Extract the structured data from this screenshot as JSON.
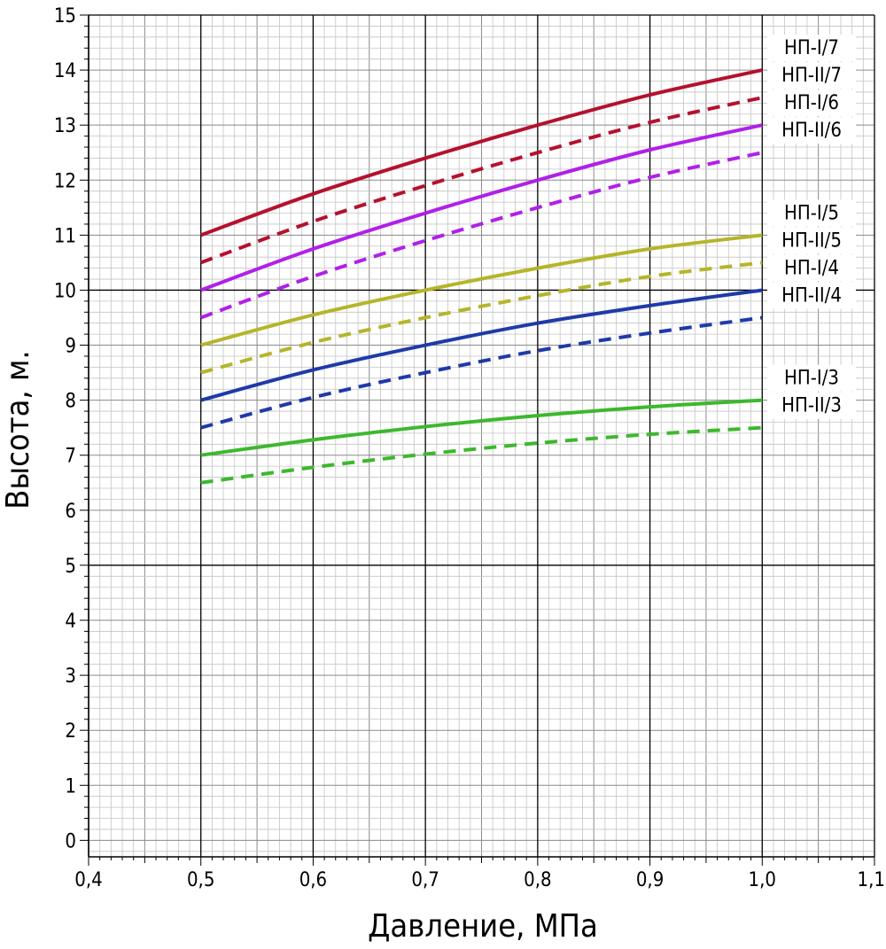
{
  "chart_data": {
    "type": "line",
    "xlabel": "Давление, МПа",
    "ylabel": "Высота, м.",
    "xlim": [
      0.4,
      1.1
    ],
    "ylim": [
      -0.3,
      15
    ],
    "x_ticks": [
      "0,4",
      "0,5",
      "0,6",
      "0,7",
      "0,8",
      "0,9",
      "1,0",
      "1,1"
    ],
    "y_ticks": [
      "0",
      "1",
      "2",
      "3",
      "4",
      "5",
      "6",
      "7",
      "8",
      "9",
      "10",
      "11",
      "12",
      "13",
      "14",
      "15"
    ],
    "grid": true,
    "legend": "right (labels at line ends)",
    "series": [
      {
        "name": "НП-I/7",
        "style": "solid",
        "color": "#b5112e",
        "x": [
          0.5,
          0.6,
          0.7,
          0.8,
          0.9,
          1.0
        ],
        "y": [
          11.0,
          11.75,
          12.4,
          13.0,
          13.55,
          14.0
        ]
      },
      {
        "name": "НП-II/7",
        "style": "dashed",
        "color": "#b5112e",
        "x": [
          0.5,
          0.6,
          0.7,
          0.8,
          0.9,
          1.0
        ],
        "y": [
          10.5,
          11.25,
          11.9,
          12.5,
          13.05,
          13.5
        ]
      },
      {
        "name": "НП-I/6",
        "style": "solid",
        "color": "#b020e8",
        "x": [
          0.5,
          0.6,
          0.7,
          0.8,
          0.9,
          1.0
        ],
        "y": [
          10.0,
          10.75,
          11.4,
          12.0,
          12.55,
          13.0
        ]
      },
      {
        "name": "НП-II/6",
        "style": "dashed",
        "color": "#b020e8",
        "x": [
          0.5,
          0.6,
          0.7,
          0.8,
          0.9,
          1.0
        ],
        "y": [
          9.5,
          10.25,
          10.9,
          11.5,
          12.05,
          12.5
        ]
      },
      {
        "name": "НП-I/5",
        "style": "solid",
        "color": "#b5b52a",
        "x": [
          0.5,
          0.6,
          0.7,
          0.8,
          0.9,
          1.0
        ],
        "y": [
          9.0,
          9.55,
          10.0,
          10.4,
          10.75,
          11.0
        ]
      },
      {
        "name": "НП-II/5",
        "style": "dashed",
        "color": "#b5b52a",
        "x": [
          0.5,
          0.6,
          0.7,
          0.8,
          0.9,
          1.0
        ],
        "y": [
          8.5,
          9.05,
          9.5,
          9.9,
          10.25,
          10.5
        ]
      },
      {
        "name": "НП-I/4",
        "style": "solid",
        "color": "#1f3aa8",
        "x": [
          0.5,
          0.6,
          0.7,
          0.8,
          0.9,
          1.0
        ],
        "y": [
          8.0,
          8.55,
          9.0,
          9.4,
          9.72,
          10.0
        ]
      },
      {
        "name": "НП-II/4",
        "style": "dashed",
        "color": "#1f3aa8",
        "x": [
          0.5,
          0.6,
          0.7,
          0.8,
          0.9,
          1.0
        ],
        "y": [
          7.5,
          8.05,
          8.5,
          8.9,
          9.22,
          9.5
        ]
      },
      {
        "name": "НП-I/3",
        "style": "solid",
        "color": "#3db82e",
        "x": [
          0.5,
          0.6,
          0.7,
          0.8,
          0.9,
          1.0
        ],
        "y": [
          7.0,
          7.28,
          7.52,
          7.72,
          7.88,
          8.0
        ]
      },
      {
        "name": "НП-II/3",
        "style": "dashed",
        "color": "#3db82e",
        "x": [
          0.5,
          0.6,
          0.7,
          0.8,
          0.9,
          1.0
        ],
        "y": [
          6.5,
          6.78,
          7.02,
          7.22,
          7.38,
          7.5
        ]
      }
    ]
  }
}
